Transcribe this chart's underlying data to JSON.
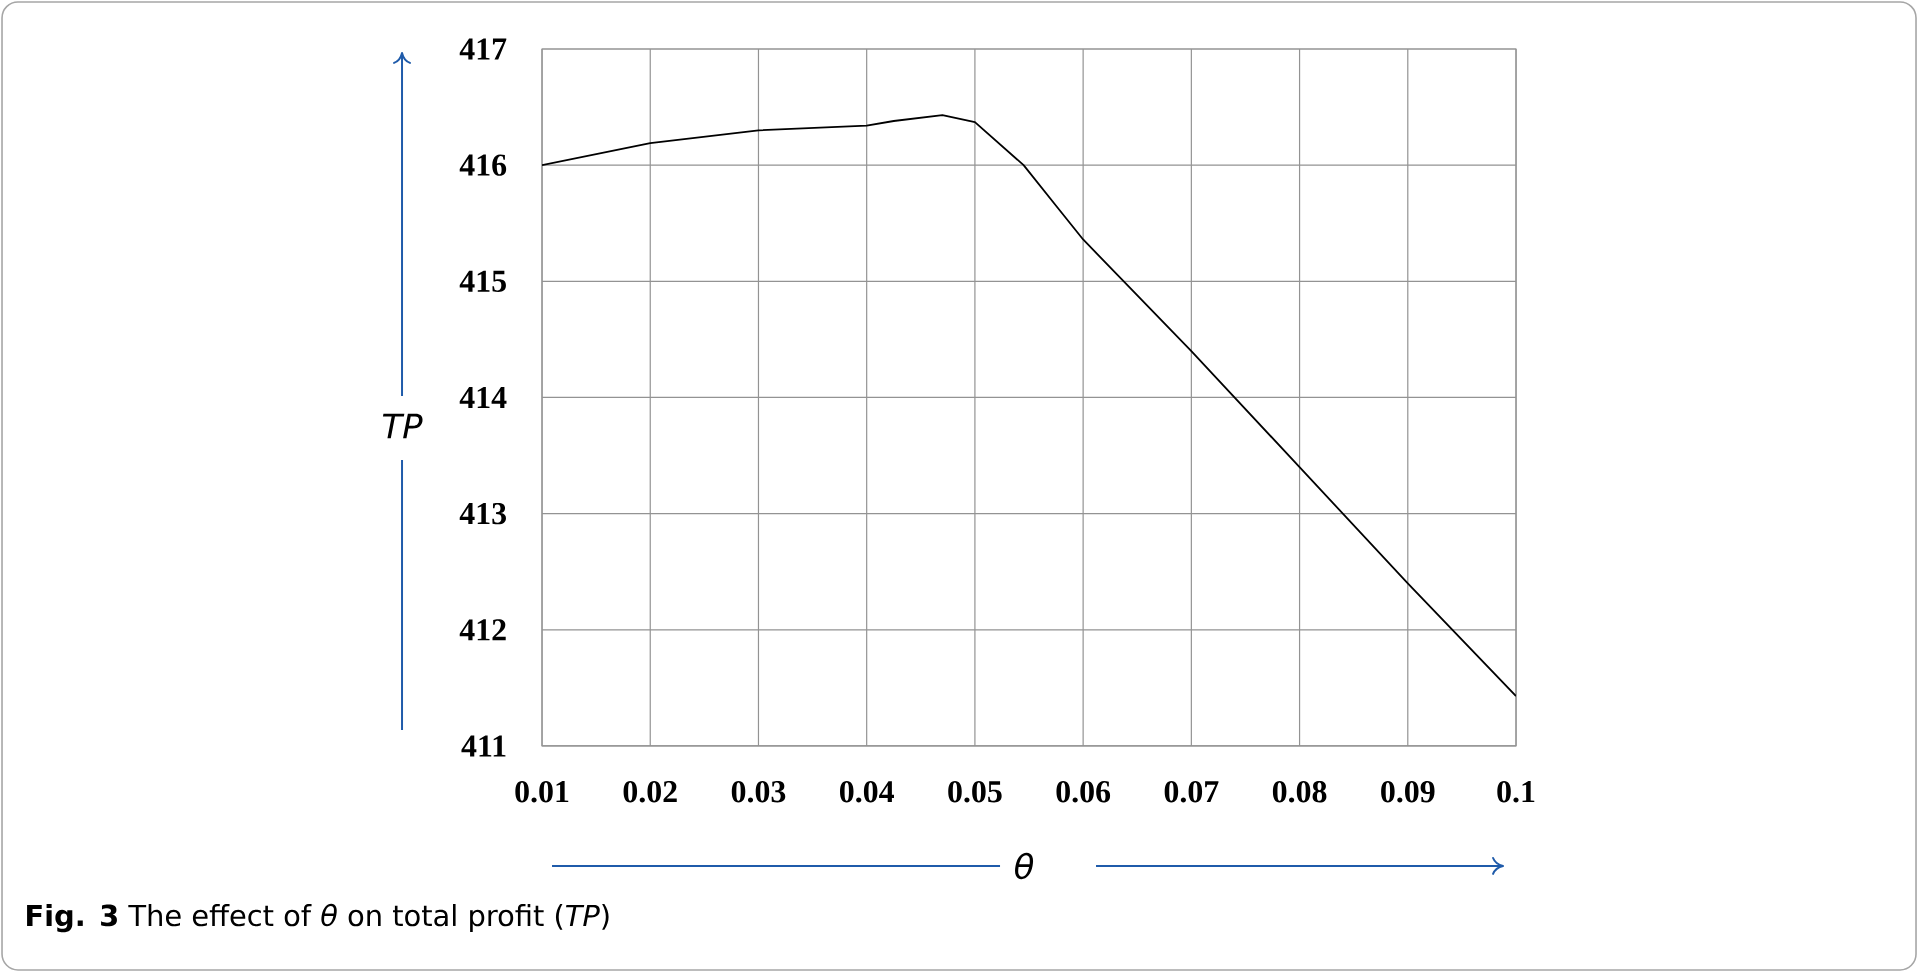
{
  "chart_data": {
    "type": "line",
    "xlabel": "θ",
    "ylabel": "TP",
    "annotations": [
      "**Fig. 3** The effect of *θ* on total profit (*TP*)"
    ],
    "x": [
      0.01,
      0.02,
      0.03,
      0.04,
      0.0425,
      0.047,
      0.05,
      0.0545,
      0.0575,
      0.06,
      0.07,
      0.08,
      0.09,
      0.1
    ],
    "series": [
      {
        "color": "#000000",
        "values": [
          416.0,
          416.19,
          416.3,
          416.34,
          416.38,
          416.43,
          416.37,
          416.0,
          415.65,
          415.36,
          414.4,
          413.4,
          412.4,
          411.43
        ]
      }
    ],
    "xlim": [
      0.01,
      0.1
    ],
    "ylim": [
      411,
      417
    ],
    "xticks": [
      0.01,
      0.02,
      0.03,
      0.04,
      0.05,
      0.06,
      0.07,
      0.08,
      0.09,
      0.1
    ],
    "yticks": [
      411,
      412,
      413,
      414,
      415,
      416,
      417
    ],
    "grid": true
  }
}
